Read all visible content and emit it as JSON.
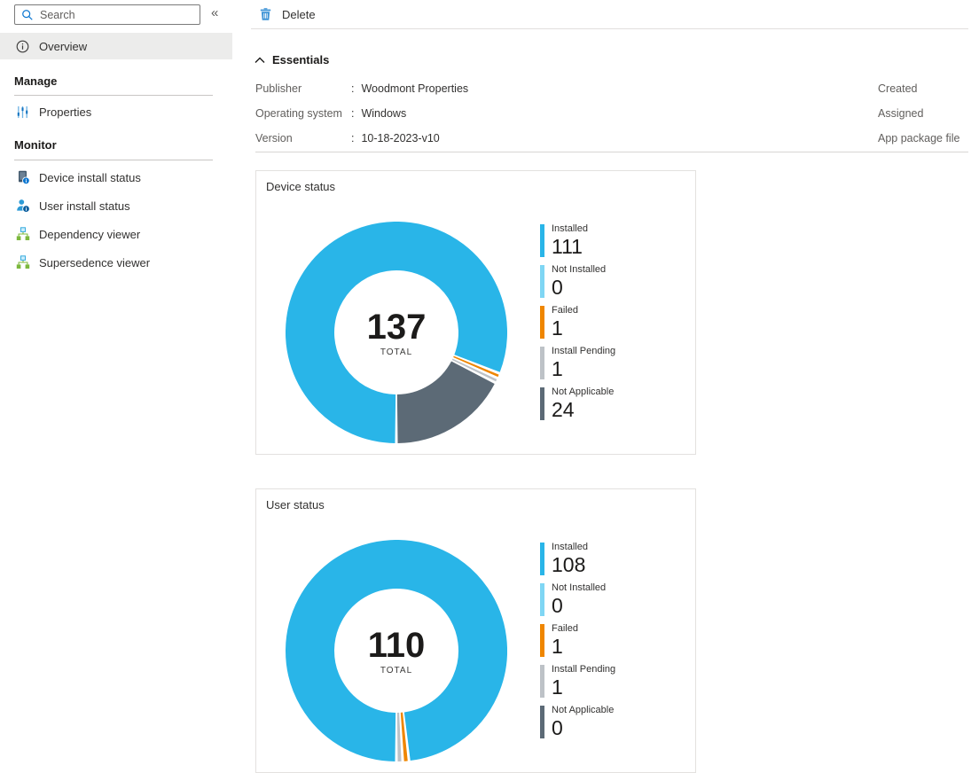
{
  "sidebar": {
    "search_placeholder": "Search",
    "collapse_icon_glyph": "«",
    "overview_label": "Overview",
    "sections": [
      {
        "header": "Manage",
        "items": [
          {
            "label": "Properties",
            "icon": "sliders-icon"
          }
        ]
      },
      {
        "header": "Monitor",
        "items": [
          {
            "label": "Device install status",
            "icon": "device-info-icon"
          },
          {
            "label": "User install status",
            "icon": "user-info-icon"
          },
          {
            "label": "Dependency viewer",
            "icon": "org-chart-icon"
          },
          {
            "label": "Supersedence viewer",
            "icon": "org-chart-icon"
          }
        ]
      }
    ]
  },
  "toolbar": {
    "delete_label": "Delete",
    "delete_icon": "trash-icon"
  },
  "essentials": {
    "title": "Essentials",
    "collapse_icon": "chevron-up-icon",
    "separator": ":",
    "left": [
      {
        "label": "Publisher",
        "value": "Woodmont Properties"
      },
      {
        "label": "Operating system",
        "value": "Windows"
      },
      {
        "label": "Version",
        "value": "10-18-2023-v10"
      }
    ],
    "right_labels": [
      "Created",
      "Assigned",
      "App package file"
    ]
  },
  "colors": {
    "accent": "#0b76d1",
    "selected_nav_bg": "#ececeb",
    "installed": "#29b5e8",
    "not_installed": "#7fd6f4",
    "failed": "#ef8600",
    "install_pending": "#bdc2c7",
    "not_applicable": "#5c6a76"
  },
  "chart_data": [
    {
      "type": "pie",
      "donut": true,
      "title": "Device status",
      "center_label": "137",
      "center_sublabel": "TOTAL",
      "total": 137,
      "categories": [
        "Installed",
        "Not Installed",
        "Failed",
        "Install Pending",
        "Not Applicable"
      ],
      "values": [
        111,
        0,
        1,
        1,
        24
      ],
      "colors": [
        "#29b5e8",
        "#7fd6f4",
        "#ef8600",
        "#bdc2c7",
        "#5c6a76"
      ],
      "legend_position": "right",
      "start_angle_deg": 180,
      "direction": "clockwise"
    },
    {
      "type": "pie",
      "donut": true,
      "title": "User status",
      "center_label": "110",
      "center_sublabel": "TOTAL",
      "total": 110,
      "categories": [
        "Installed",
        "Not Installed",
        "Failed",
        "Install Pending",
        "Not Applicable"
      ],
      "values": [
        108,
        0,
        1,
        1,
        0
      ],
      "colors": [
        "#29b5e8",
        "#7fd6f4",
        "#ef8600",
        "#bdc2c7",
        "#5c6a76"
      ],
      "legend_position": "right",
      "start_angle_deg": 180,
      "direction": "clockwise"
    }
  ]
}
